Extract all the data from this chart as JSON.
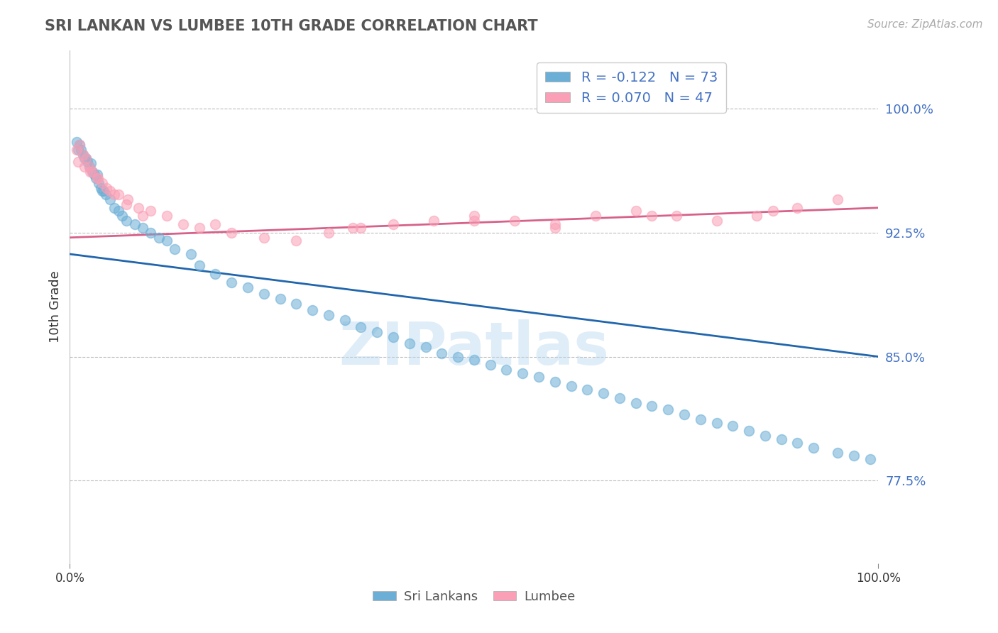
{
  "title": "SRI LANKAN VS LUMBEE 10TH GRADE CORRELATION CHART",
  "source": "Source: ZipAtlas.com",
  "ylabel": "10th Grade",
  "yticks": [
    0.775,
    0.85,
    0.925,
    1.0
  ],
  "ytick_labels": [
    "77.5%",
    "85.0%",
    "92.5%",
    "100.0%"
  ],
  "xlim": [
    0.0,
    1.0
  ],
  "ylim": [
    0.725,
    1.035
  ],
  "sri_lankan_color": "#6baed6",
  "lumbee_color": "#fa9fb5",
  "sri_lankan_line_color": "#2166ac",
  "lumbee_line_color": "#d6618a",
  "sri_lankan_R": -0.122,
  "sri_lankan_N": 73,
  "lumbee_R": 0.07,
  "lumbee_N": 47,
  "sri_lankan_line_start_y": 0.912,
  "sri_lankan_line_end_y": 0.85,
  "lumbee_line_start_y": 0.922,
  "lumbee_line_end_y": 0.94,
  "watermark_text": "ZIPatlas",
  "legend_R_color": "#2166ac",
  "legend_N_color": "#2166ac",
  "sri_lankans_scatter_x": [
    0.008,
    0.01,
    0.012,
    0.014,
    0.016,
    0.018,
    0.02,
    0.022,
    0.024,
    0.026,
    0.028,
    0.03,
    0.032,
    0.034,
    0.036,
    0.038,
    0.04,
    0.042,
    0.044,
    0.05,
    0.055,
    0.06,
    0.065,
    0.07,
    0.08,
    0.09,
    0.1,
    0.11,
    0.12,
    0.13,
    0.15,
    0.16,
    0.18,
    0.2,
    0.22,
    0.24,
    0.26,
    0.28,
    0.3,
    0.32,
    0.34,
    0.36,
    0.38,
    0.4,
    0.42,
    0.44,
    0.46,
    0.48,
    0.5,
    0.52,
    0.54,
    0.56,
    0.58,
    0.6,
    0.62,
    0.64,
    0.66,
    0.68,
    0.7,
    0.72,
    0.74,
    0.76,
    0.78,
    0.8,
    0.82,
    0.84,
    0.86,
    0.88,
    0.9,
    0.92,
    0.95,
    0.97,
    0.99
  ],
  "sri_lankans_scatter_y": [
    0.98,
    0.975,
    0.978,
    0.975,
    0.972,
    0.97,
    0.97,
    0.968,
    0.965,
    0.967,
    0.962,
    0.96,
    0.958,
    0.96,
    0.955,
    0.952,
    0.95,
    0.95,
    0.948,
    0.945,
    0.94,
    0.938,
    0.935,
    0.932,
    0.93,
    0.928,
    0.925,
    0.922,
    0.92,
    0.915,
    0.912,
    0.905,
    0.9,
    0.895,
    0.892,
    0.888,
    0.885,
    0.882,
    0.878,
    0.875,
    0.872,
    0.868,
    0.865,
    0.862,
    0.858,
    0.856,
    0.852,
    0.85,
    0.848,
    0.845,
    0.842,
    0.84,
    0.838,
    0.835,
    0.832,
    0.83,
    0.828,
    0.825,
    0.822,
    0.82,
    0.818,
    0.815,
    0.812,
    0.81,
    0.808,
    0.805,
    0.802,
    0.8,
    0.798,
    0.795,
    0.792,
    0.79,
    0.788
  ],
  "lumbee_scatter_x": [
    0.008,
    0.012,
    0.016,
    0.02,
    0.024,
    0.028,
    0.034,
    0.04,
    0.05,
    0.06,
    0.072,
    0.085,
    0.1,
    0.12,
    0.14,
    0.16,
    0.2,
    0.24,
    0.28,
    0.32,
    0.36,
    0.4,
    0.45,
    0.5,
    0.55,
    0.6,
    0.65,
    0.7,
    0.75,
    0.8,
    0.85,
    0.87,
    0.9,
    0.95,
    0.01,
    0.018,
    0.025,
    0.035,
    0.045,
    0.055,
    0.07,
    0.09,
    0.18,
    0.35,
    0.5,
    0.6,
    0.72
  ],
  "lumbee_scatter_y": [
    0.975,
    0.978,
    0.972,
    0.97,
    0.965,
    0.962,
    0.958,
    0.955,
    0.95,
    0.948,
    0.945,
    0.94,
    0.938,
    0.935,
    0.93,
    0.928,
    0.925,
    0.922,
    0.92,
    0.925,
    0.928,
    0.93,
    0.932,
    0.935,
    0.932,
    0.93,
    0.935,
    0.938,
    0.935,
    0.932,
    0.935,
    0.938,
    0.94,
    0.945,
    0.968,
    0.965,
    0.962,
    0.958,
    0.952,
    0.948,
    0.942,
    0.935,
    0.93,
    0.928,
    0.932,
    0.928,
    0.935
  ]
}
